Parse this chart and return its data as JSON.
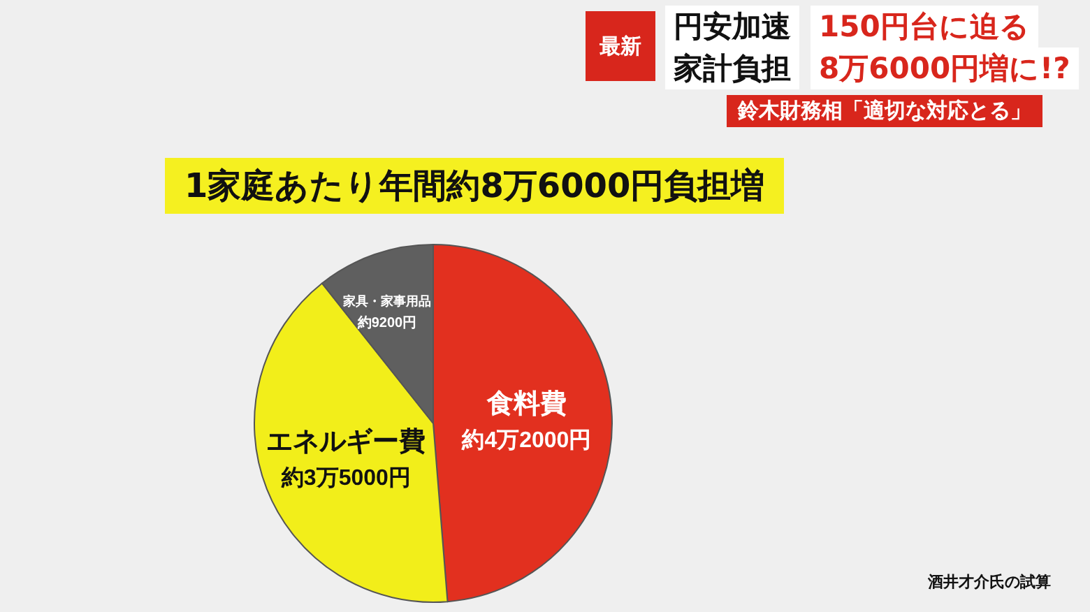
{
  "chart_data": {
    "type": "pie",
    "title": "1家庭あたり年間約8万6000円負担増",
    "categories": [
      "食料費",
      "エネルギー費",
      "家具・家事用品"
    ],
    "values": [
      42000,
      35000,
      9200
    ],
    "value_labels": [
      "約4万2000円",
      "約3万5000円",
      "約9200円"
    ],
    "colors": [
      "#e2301f",
      "#f2ee1a",
      "#5f5f5f"
    ],
    "legend": false,
    "annotations": [
      "最新",
      "円安加速",
      "150円台に迫る",
      "家計負担",
      "8万6000円増に!?",
      "鈴木財務相「適切な対応とる」",
      "酒井才介氏の試算"
    ]
  }
}
